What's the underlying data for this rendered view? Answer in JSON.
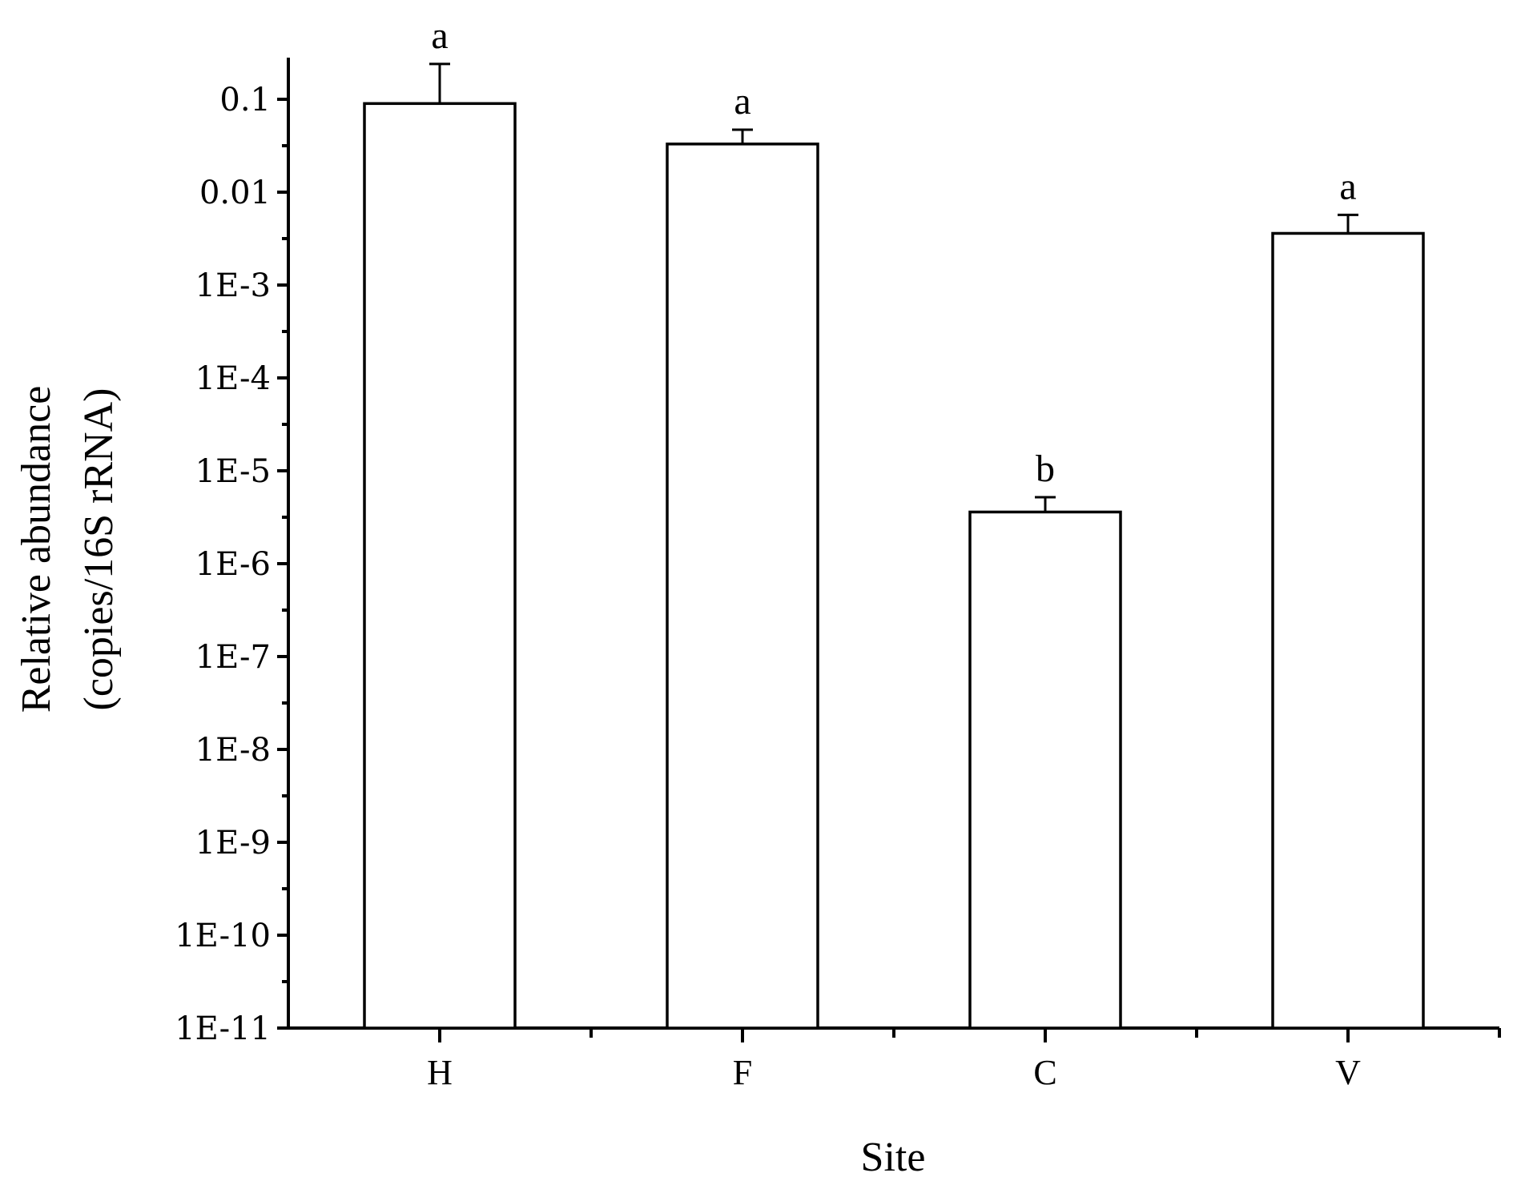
{
  "chart_data": {
    "type": "bar",
    "title": "",
    "xlabel": "Site",
    "ylabel_line1": "Relative abundance",
    "ylabel_line2": "(copies/16S rRNA)",
    "yscale": "log",
    "ylim": [
      1e-11,
      1
    ],
    "y_ticks": [
      {
        "value": 0.1,
        "label": "0.1"
      },
      {
        "value": 0.01,
        "label": "0.01"
      },
      {
        "value": 0.001,
        "label": "1E-3"
      },
      {
        "value": 0.0001,
        "label": "1E-4"
      },
      {
        "value": 1e-05,
        "label": "1E-5"
      },
      {
        "value": 1e-06,
        "label": "1E-6"
      },
      {
        "value": 1e-07,
        "label": "1E-7"
      },
      {
        "value": 1e-08,
        "label": "1E-8"
      },
      {
        "value": 1e-09,
        "label": "1E-9"
      },
      {
        "value": 1e-10,
        "label": "1E-10"
      },
      {
        "value": 1e-11,
        "label": "1E-11"
      }
    ],
    "categories": [
      "H",
      "F",
      "C",
      "V"
    ],
    "values": [
      0.09,
      0.033,
      3.6e-06,
      0.0036
    ],
    "error_upper": [
      0.24,
      0.047,
      5.2e-06,
      0.0057
    ],
    "significance_letters": [
      "a",
      "a",
      "b",
      "a"
    ],
    "grid": false,
    "legend": "none",
    "colors": {
      "bar_fill": "#ffffff",
      "bar_stroke": "#000000",
      "axis": "#000000"
    }
  }
}
